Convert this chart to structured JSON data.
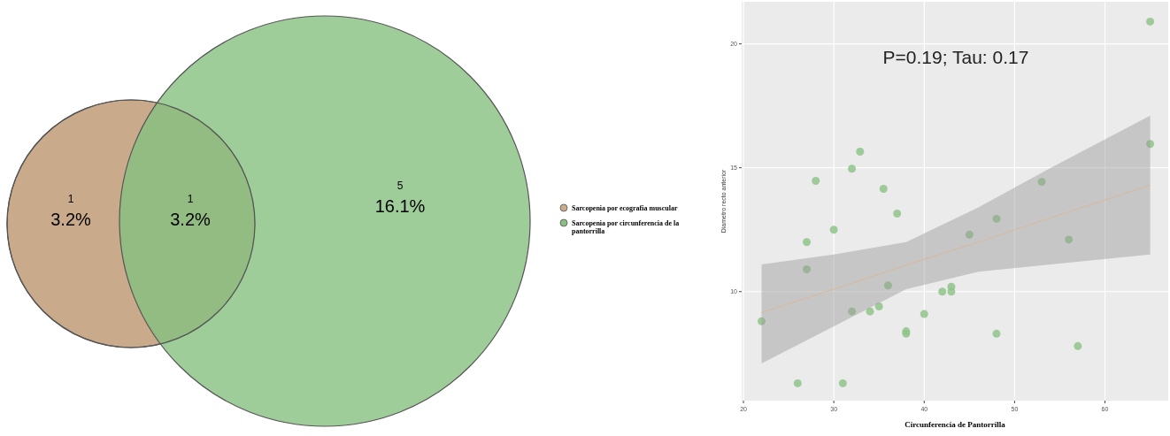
{
  "chart_data": [
    {
      "type": "other",
      "annotations": [
        "1",
        "3.2%",
        "1",
        "3.2%",
        "5",
        "16.1%"
      ],
      "series": [
        {
          "name": "Sarcopenia por ecografia muscular",
          "color": "#c9ab8c"
        },
        {
          "name": "Sarcopenia por circunferencia de la pantorrilla",
          "color": "#86c181"
        }
      ],
      "legend": "right"
    },
    {
      "type": "scatter",
      "xlabel": "Circunferencia de Pantorrilla",
      "ylabel": "Diametro recto anterior",
      "annotations": [
        "P=0.19; Tau: 0.17"
      ],
      "xlim": [
        19.8,
        67
      ],
      "ylim": [
        5.6,
        21.7
      ],
      "xticks": [
        20,
        30,
        40,
        50,
        60
      ],
      "yticks": [
        10,
        15,
        20
      ],
      "grid": true,
      "series": [
        {
          "type": "scatter",
          "marker": "circle",
          "color": "#8fc48a",
          "x": [
            65,
            65,
            53,
            32.9,
            32,
            28,
            35.5,
            37,
            48,
            30,
            27,
            45,
            56,
            27,
            36,
            42,
            43,
            43,
            22,
            32,
            34,
            35,
            40,
            38,
            38,
            48,
            57,
            26,
            31
          ],
          "values": [
            20.9,
            15.96,
            14.43,
            15.65,
            14.96,
            14.47,
            14.15,
            13.15,
            12.94,
            12.5,
            12.0,
            12.3,
            12.1,
            10.9,
            10.25,
            10.0,
            10.2,
            10.0,
            8.8,
            9.2,
            9.2,
            9.4,
            9.1,
            8.4,
            8.3,
            8.3,
            7.8,
            6.3,
            6.3
          ]
        },
        {
          "type": "line",
          "color": "#d8b89c",
          "x": [
            22,
            30,
            38,
            46,
            54,
            65
          ],
          "values": [
            9.15,
            10.1,
            11.07,
            12.0,
            12.98,
            14.3
          ],
          "lower": [
            7.1,
            8.6,
            10.1,
            10.8,
            11.1,
            11.5
          ],
          "upper": [
            11.1,
            11.5,
            12.0,
            13.4,
            15.0,
            17.1
          ]
        }
      ]
    }
  ]
}
